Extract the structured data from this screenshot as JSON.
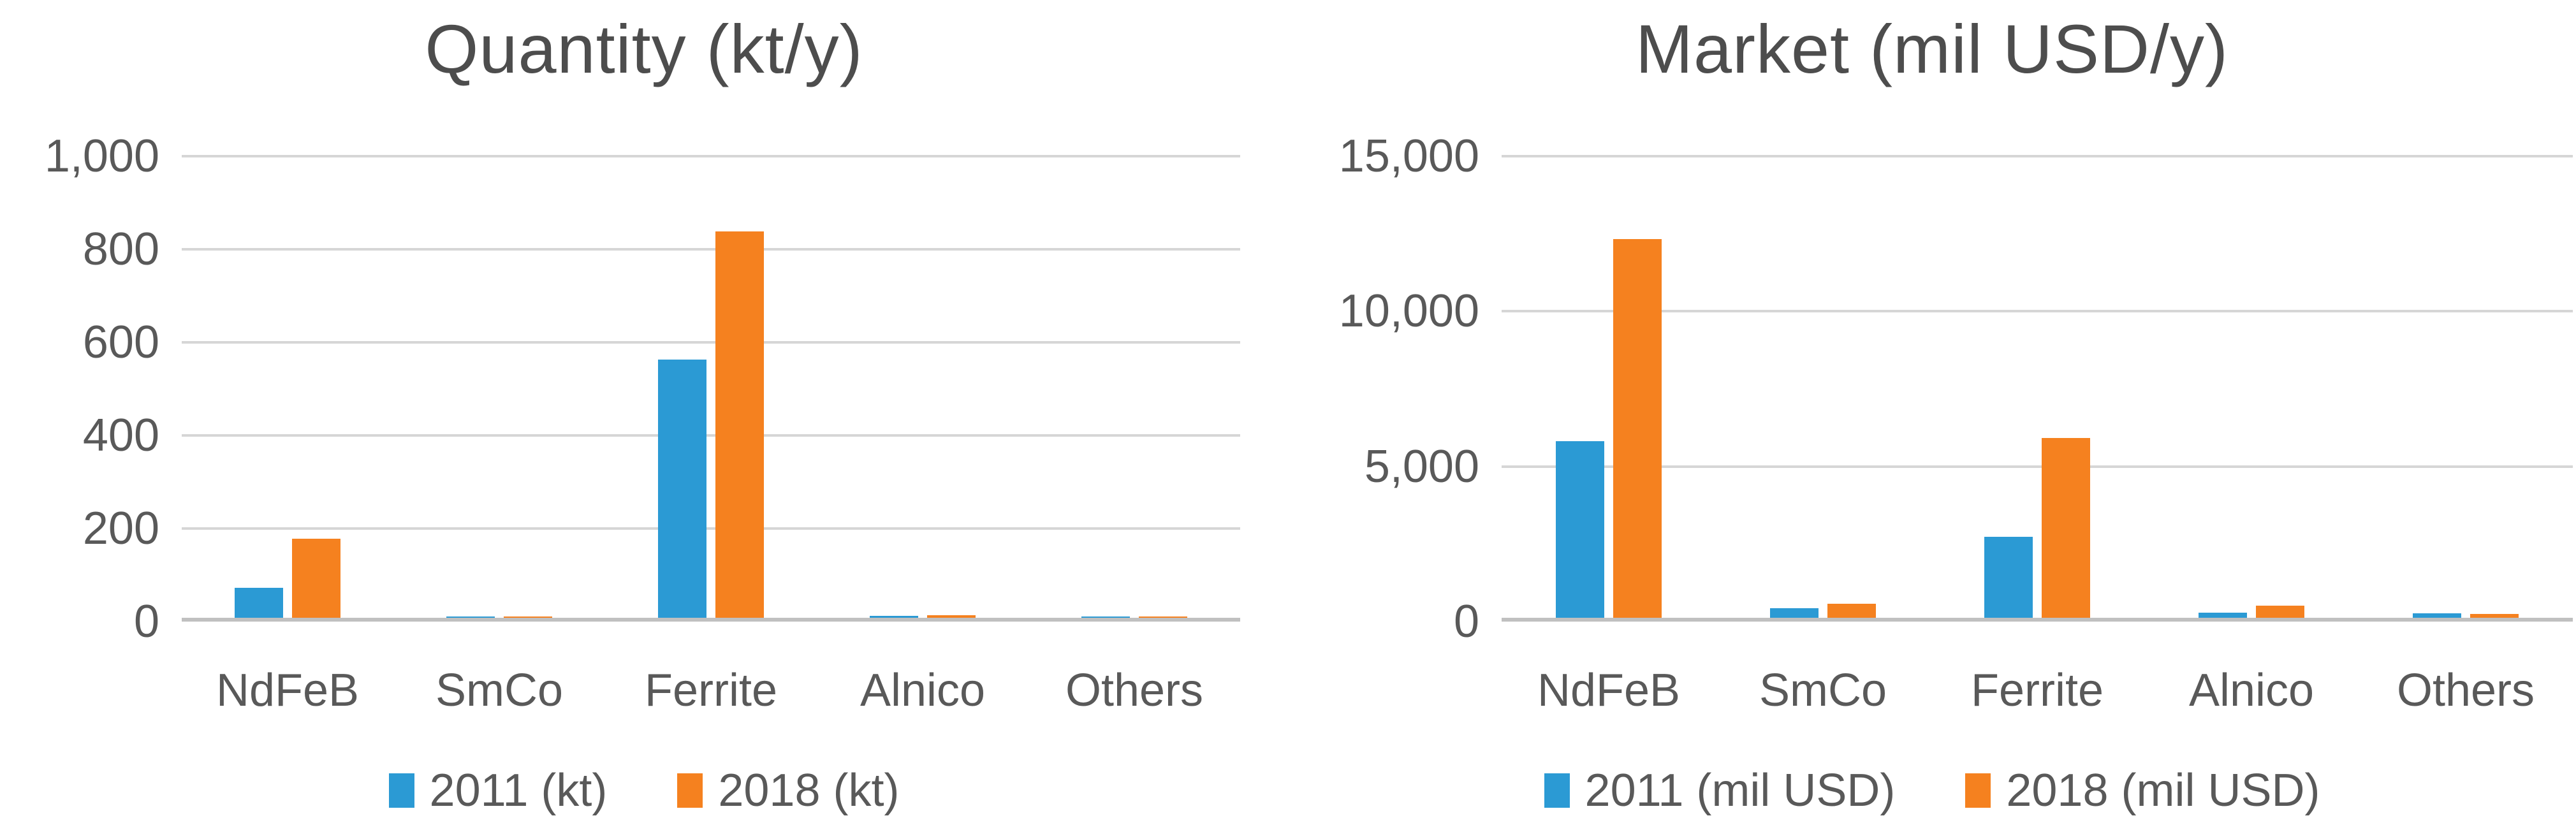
{
  "colors": {
    "series_2011_blue": "#2b9ad4",
    "series_2018_orange": "#f5811f",
    "title_text": "#4d4d4d",
    "axis_text": "#595959",
    "gridline": "#d6d6d6",
    "axis_line": "#c0c0c0",
    "background": "#ffffff"
  },
  "chart_data": [
    {
      "type": "bar",
      "title": "Quantity (kt/y)",
      "categories": [
        "NdFeB",
        "SmCo",
        "Ferrite",
        "Alnico",
        "Others"
      ],
      "series": [
        {
          "name": "2011 (kt)",
          "color": "#2b9ad4",
          "values": [
            65,
            2,
            555,
            4,
            2
          ]
        },
        {
          "name": "2018 (kt)",
          "color": "#f5811f",
          "values": [
            170,
            3,
            830,
            6,
            2
          ]
        }
      ],
      "xlabel": "",
      "ylabel": "",
      "ylim": [
        0,
        1000
      ],
      "yticks": [
        {
          "value": 1000,
          "label": "1,000"
        },
        {
          "value": 800,
          "label": "800"
        },
        {
          "value": 600,
          "label": "600"
        },
        {
          "value": 400,
          "label": "400"
        },
        {
          "value": 200,
          "label": "200"
        },
        {
          "value": 0,
          "label": "0"
        }
      ],
      "grid": true,
      "legend_position": "bottom"
    },
    {
      "type": "bar",
      "title": "Market (mil USD/y)",
      "categories": [
        "NdFeB",
        "SmCo",
        "Ferrite",
        "Alnico",
        "Others"
      ],
      "series": [
        {
          "name": "2011 (mil USD)",
          "color": "#2b9ad4",
          "values": [
            5700,
            300,
            2600,
            160,
            150
          ]
        },
        {
          "name": "2018 (mil USD)",
          "color": "#f5811f",
          "values": [
            12200,
            450,
            5800,
            400,
            130
          ]
        }
      ],
      "xlabel": "",
      "ylabel": "",
      "ylim": [
        0,
        15000
      ],
      "yticks": [
        {
          "value": 15000,
          "label": "15,000"
        },
        {
          "value": 10000,
          "label": "10,000"
        },
        {
          "value": 5000,
          "label": "5,000"
        },
        {
          "value": 0,
          "label": "0"
        }
      ],
      "grid": true,
      "legend_position": "bottom"
    }
  ]
}
